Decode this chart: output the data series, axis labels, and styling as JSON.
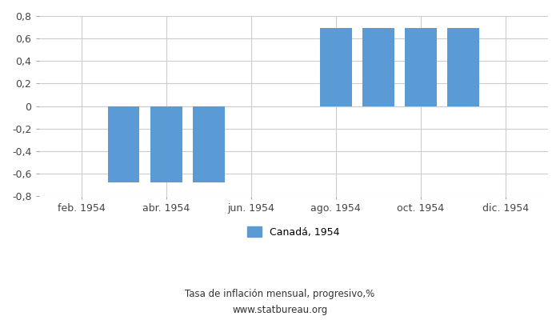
{
  "bar_x": [
    3,
    4,
    5,
    8,
    9,
    10,
    11
  ],
  "bar_values": [
    -0.68,
    -0.68,
    -0.68,
    0.69,
    0.69,
    0.69,
    0.69
  ],
  "bar_color": "#5b9bd5",
  "xtick_positions": [
    2,
    4,
    6,
    8,
    10,
    12
  ],
  "xtick_labels": [
    "feb. 1954",
    "abr. 1954",
    "jun. 1954",
    "ago. 1954",
    "oct. 1954",
    "dic. 1954"
  ],
  "xlim": [
    1,
    13
  ],
  "ylim": [
    -0.8,
    0.8
  ],
  "yticks": [
    -0.8,
    -0.6,
    -0.4,
    -0.2,
    0.0,
    0.2,
    0.4,
    0.6,
    0.8
  ],
  "ytick_labels": [
    "-0,8",
    "-0,6",
    "-0,4",
    "-0,2",
    "0",
    "0,2",
    "0,4",
    "0,6",
    "0,8"
  ],
  "legend_label": "Canadá, 1954",
  "footnote_line1": "Tasa de inflación mensual, progresivo,%",
  "footnote_line2": "www.statbureau.org",
  "bar_width": 0.75,
  "background_color": "#ffffff",
  "grid_color": "#cccccc"
}
